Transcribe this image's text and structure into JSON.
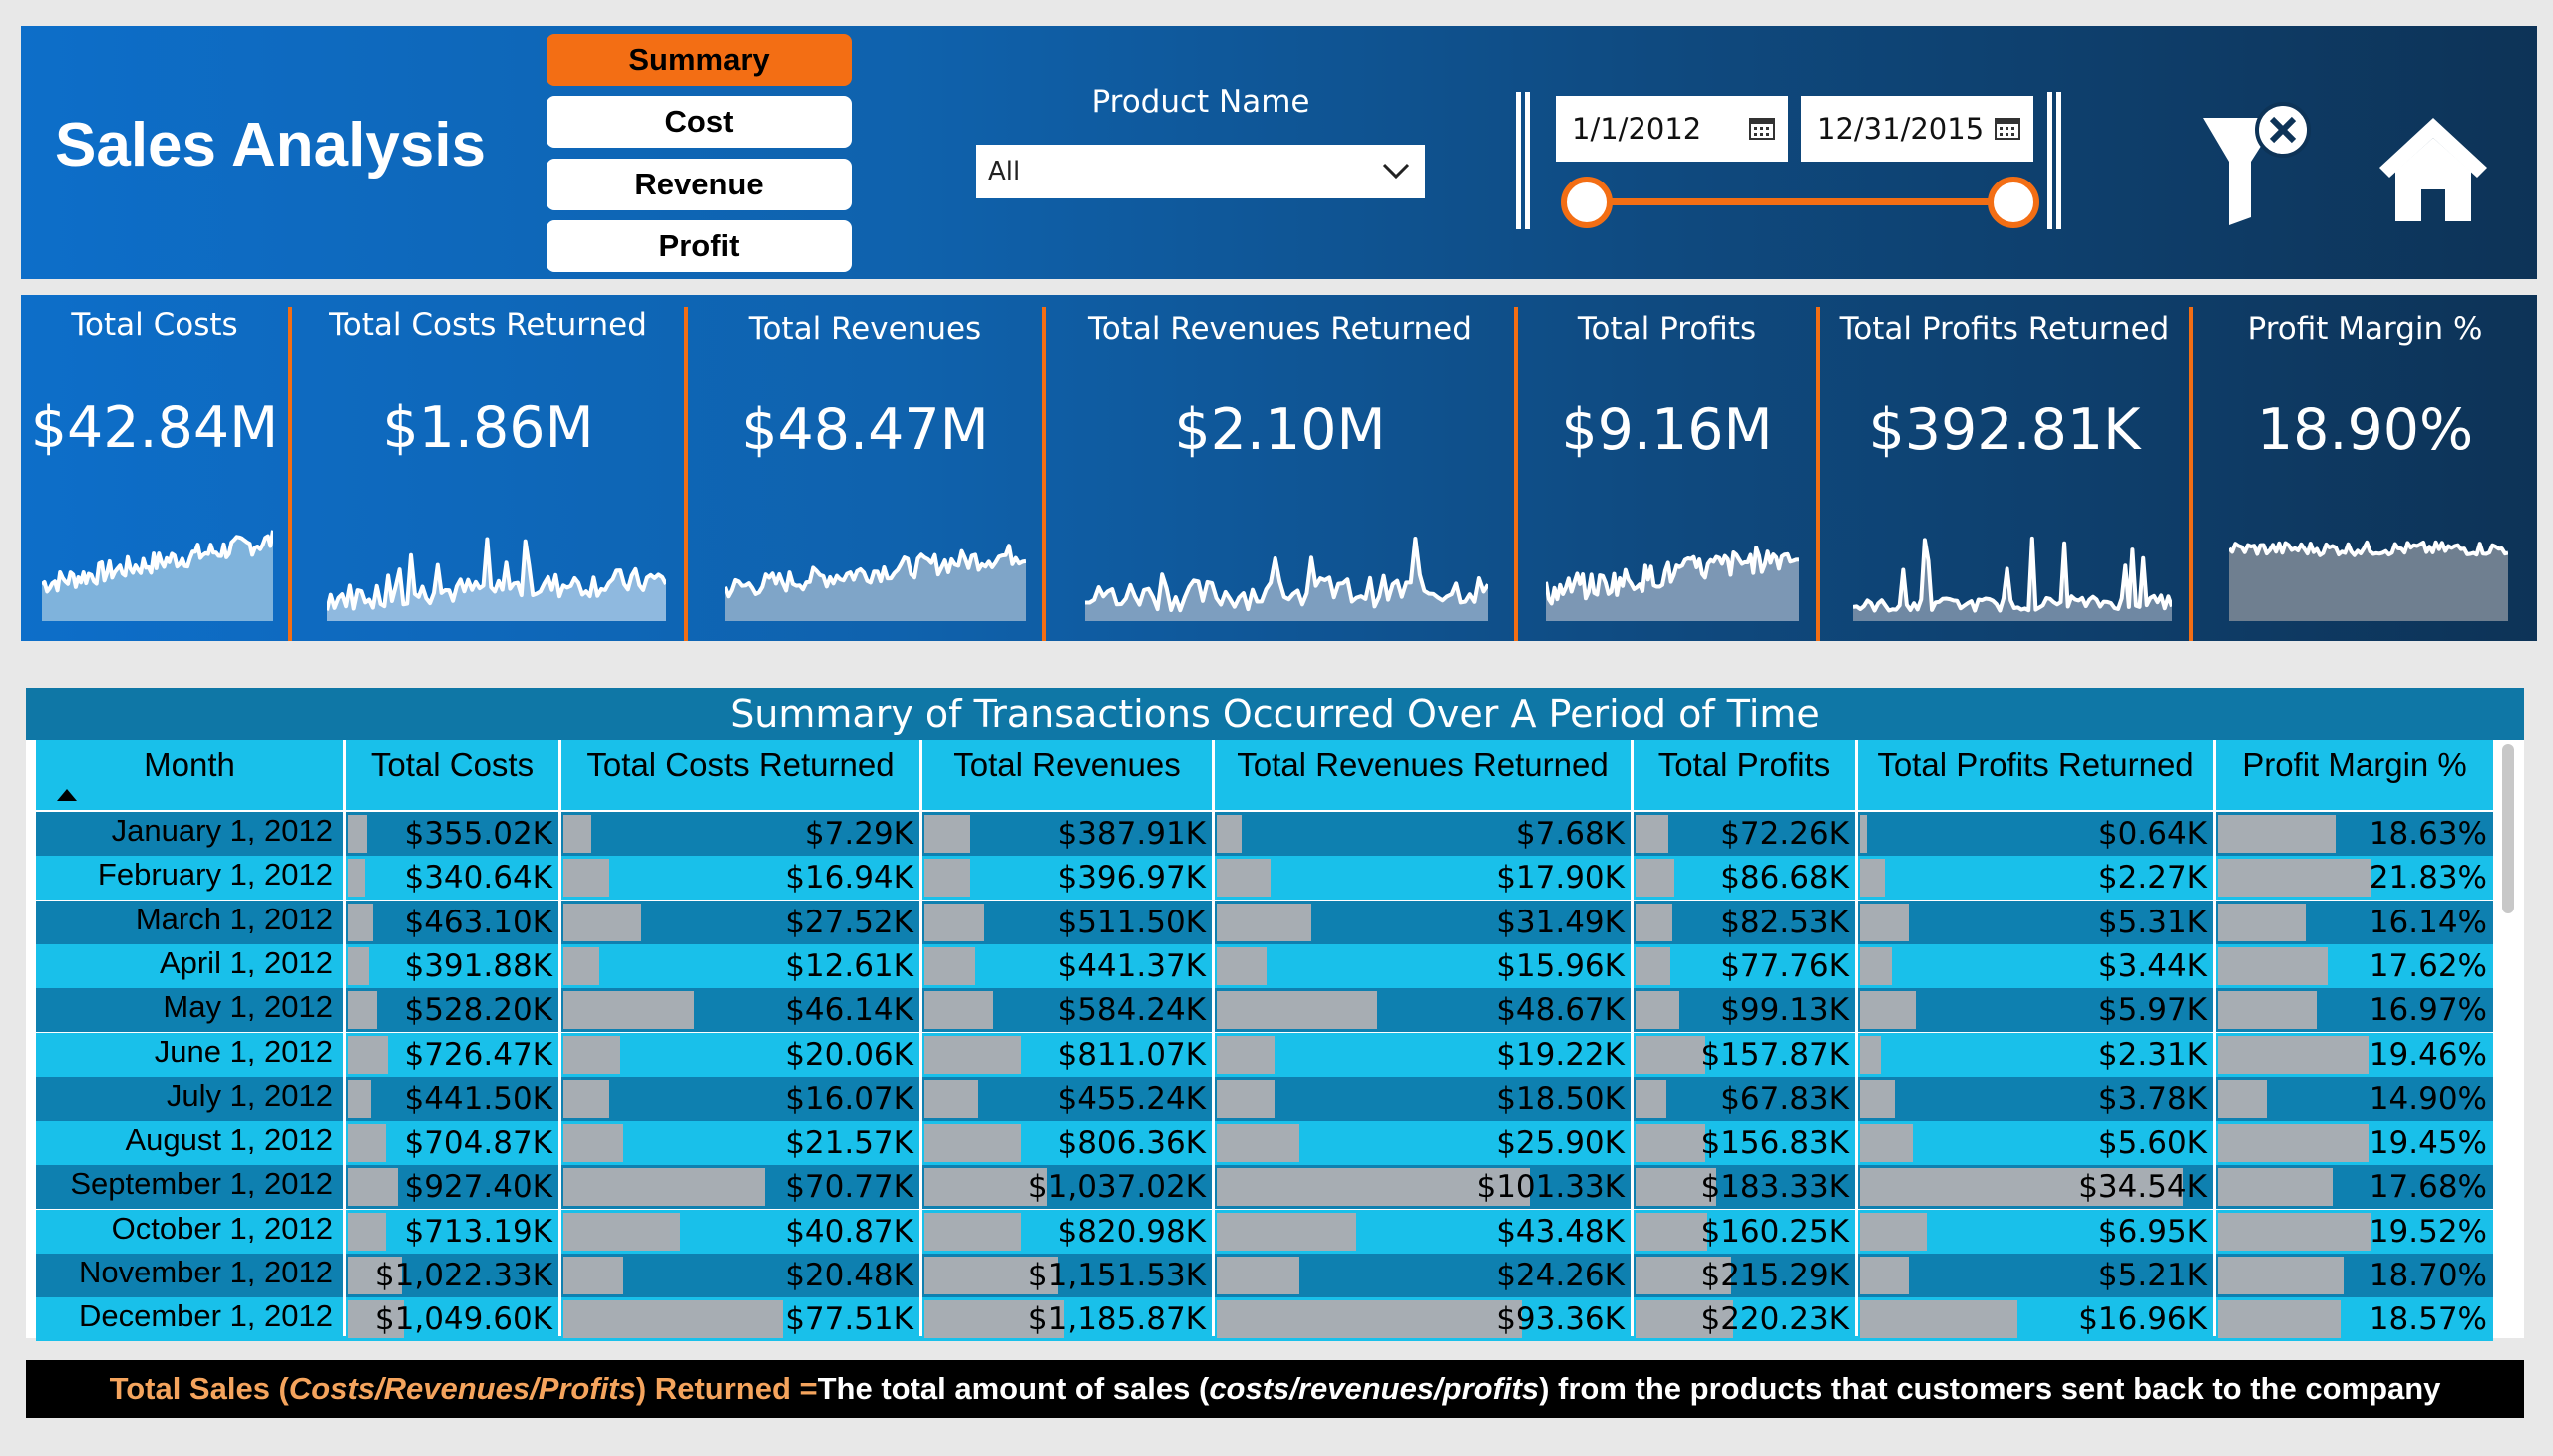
{
  "header": {
    "title": "Sales Analysis",
    "nav": [
      "Summary",
      "Cost",
      "Revenue",
      "Profit"
    ],
    "active_nav": "Summary",
    "product_filter": {
      "label": "Product Name",
      "value": "All"
    },
    "date_range": {
      "start": "1/1/2012",
      "end": "12/31/2015"
    },
    "icons": [
      "clear-filter-icon",
      "home-icon"
    ]
  },
  "kpis": [
    {
      "label": "Total Costs",
      "value": "$42.84M"
    },
    {
      "label": "Total Costs Returned",
      "value": "$1.86M"
    },
    {
      "label": "Total Revenues",
      "value": "$48.47M"
    },
    {
      "label": "Total Revenues Returned",
      "value": "$2.10M"
    },
    {
      "label": "Total Profits",
      "value": "$9.16M"
    },
    {
      "label": "Total Profits Returned",
      "value": "$392.81K"
    },
    {
      "label": "Profit Margin %",
      "value": "18.90%"
    }
  ],
  "table": {
    "title": "Summary of Transactions Occurred Over A Period of Time",
    "columns": [
      "Month",
      "Total Costs",
      "Total Costs Returned",
      "Total Revenues",
      "Total Revenues Returned",
      "Total Profits",
      "Total Profits Returned",
      "Profit Margin %"
    ],
    "rows": [
      [
        "January 1, 2012",
        "$355.02K",
        "$7.29K",
        "$387.91K",
        "$7.68K",
        "$72.26K",
        "$0.64K",
        "18.63%"
      ],
      [
        "February 1, 2012",
        "$340.64K",
        "$16.94K",
        "$396.97K",
        "$17.90K",
        "$86.68K",
        "$2.27K",
        "21.83%"
      ],
      [
        "March 1, 2012",
        "$463.10K",
        "$27.52K",
        "$511.50K",
        "$31.49K",
        "$82.53K",
        "$5.31K",
        "16.14%"
      ],
      [
        "April 1, 2012",
        "$391.88K",
        "$12.61K",
        "$441.37K",
        "$15.96K",
        "$77.76K",
        "$3.44K",
        "17.62%"
      ],
      [
        "May 1, 2012",
        "$528.20K",
        "$46.14K",
        "$584.24K",
        "$48.67K",
        "$99.13K",
        "$5.97K",
        "16.97%"
      ],
      [
        "June 1, 2012",
        "$726.47K",
        "$20.06K",
        "$811.07K",
        "$19.22K",
        "$157.87K",
        "$2.31K",
        "19.46%"
      ],
      [
        "July 1, 2012",
        "$441.50K",
        "$16.07K",
        "$455.24K",
        "$18.50K",
        "$67.83K",
        "$3.78K",
        "14.90%"
      ],
      [
        "August 1, 2012",
        "$704.87K",
        "$21.57K",
        "$806.36K",
        "$25.90K",
        "$156.83K",
        "$5.60K",
        "19.45%"
      ],
      [
        "September 1, 2012",
        "$927.40K",
        "$70.77K",
        "$1,037.02K",
        "$101.33K",
        "$183.33K",
        "$34.54K",
        "17.68%"
      ],
      [
        "October 1, 2012",
        "$713.19K",
        "$40.87K",
        "$820.98K",
        "$43.48K",
        "$160.25K",
        "$6.95K",
        "19.52%"
      ],
      [
        "November 1, 2012",
        "$1,022.33K",
        "$20.48K",
        "$1,151.53K",
        "$24.26K",
        "$215.29K",
        "$5.21K",
        "18.70%"
      ],
      [
        "December 1, 2012",
        "$1,049.60K",
        "$77.51K",
        "$1,185.87K",
        "$93.36K",
        "$220.23K",
        "$16.96K",
        "18.57%"
      ]
    ],
    "bar_fractions": [
      [
        0.09,
        0.08,
        0.16,
        0.06,
        0.15,
        0.02,
        0.43
      ],
      [
        0.08,
        0.13,
        0.16,
        0.13,
        0.18,
        0.07,
        0.56
      ],
      [
        0.12,
        0.22,
        0.21,
        0.23,
        0.17,
        0.14,
        0.32
      ],
      [
        0.1,
        0.1,
        0.18,
        0.12,
        0.16,
        0.09,
        0.4
      ],
      [
        0.14,
        0.37,
        0.24,
        0.39,
        0.2,
        0.16,
        0.36
      ],
      [
        0.19,
        0.16,
        0.34,
        0.14,
        0.32,
        0.06,
        0.55
      ],
      [
        0.11,
        0.13,
        0.19,
        0.14,
        0.14,
        0.1,
        0.18
      ],
      [
        0.18,
        0.17,
        0.34,
        0.2,
        0.32,
        0.15,
        0.55
      ],
      [
        0.24,
        0.57,
        0.43,
        0.76,
        0.37,
        0.92,
        0.42
      ],
      [
        0.18,
        0.33,
        0.34,
        0.34,
        0.33,
        0.19,
        0.56
      ],
      [
        0.26,
        0.17,
        0.47,
        0.2,
        0.44,
        0.14,
        0.46
      ],
      [
        0.27,
        0.62,
        0.49,
        0.74,
        0.45,
        0.45,
        0.45
      ]
    ]
  },
  "footer": {
    "part1": "Total Sales (",
    "part1_italic": "Costs/Revenues/Profits",
    "part1_end": ") Returned = ",
    "part2": "The total amount of sales (",
    "part2_italic": "costs/revenues/profits",
    "part2_end": ") from the products that customers sent back to the company"
  },
  "colors": {
    "accent": "#f36e14",
    "header_blue": "#0d6ec9",
    "row_dark": "#0e80b0",
    "row_light": "#19c0ea",
    "data_bar": "#a7adb3"
  }
}
